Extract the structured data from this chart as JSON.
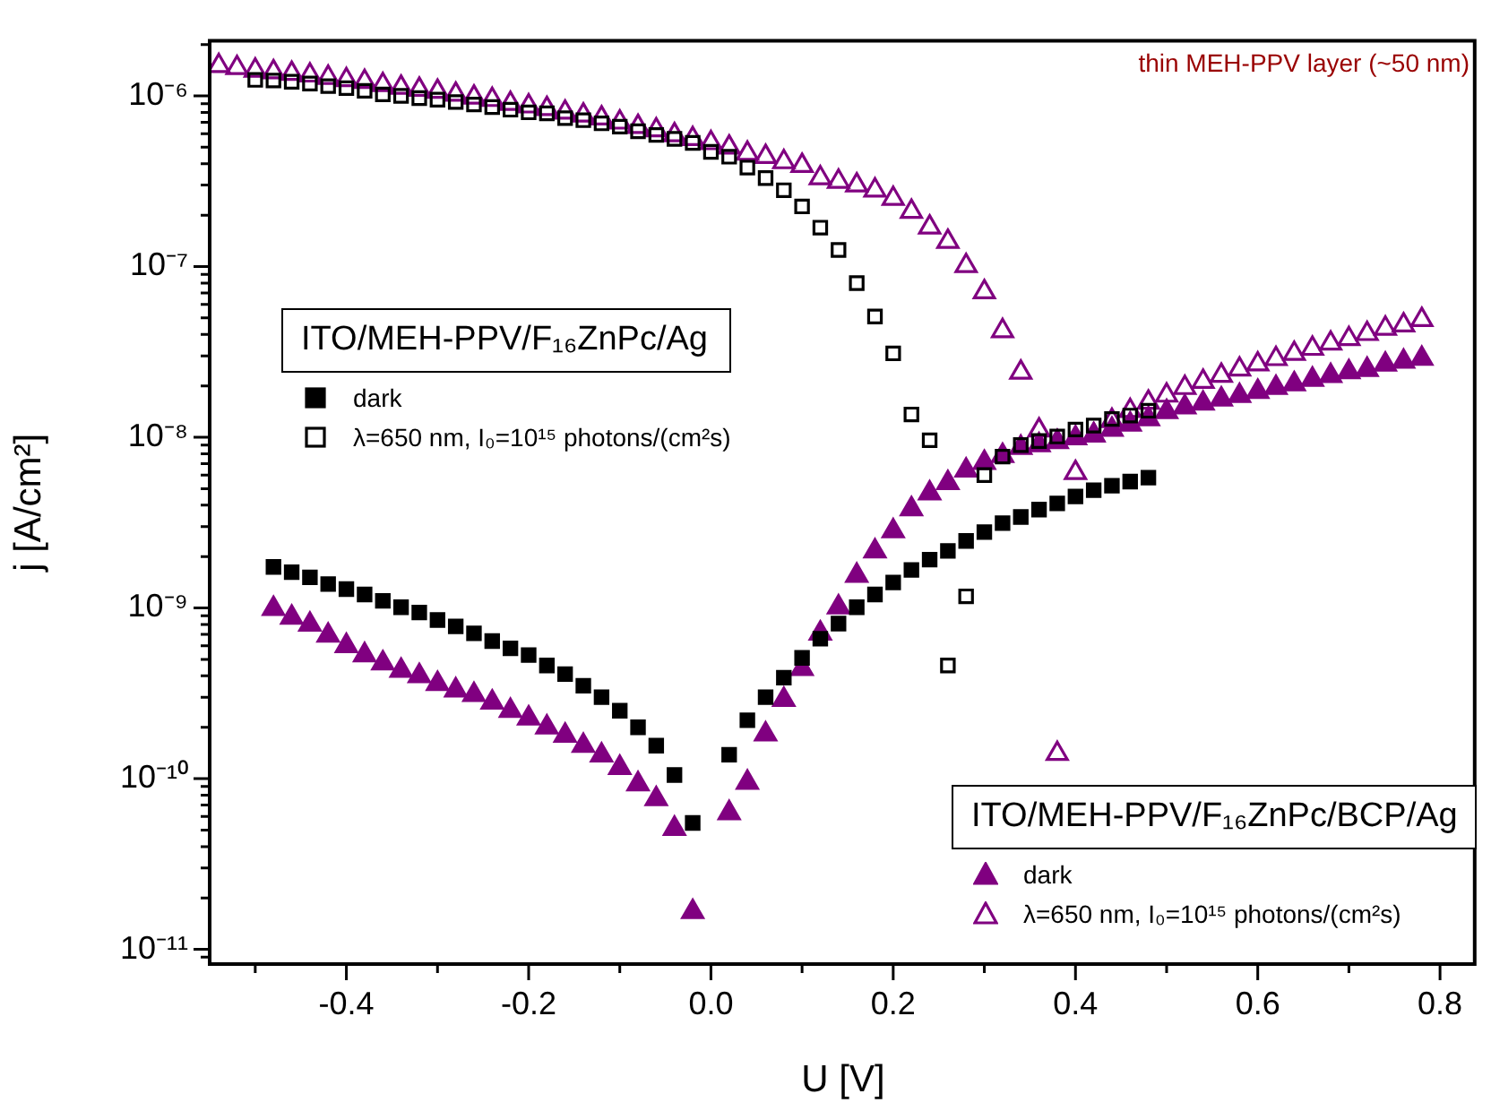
{
  "chart_data": {
    "type": "scatter",
    "xlabel": "U [V]",
    "ylabel": "j [A/cm²]",
    "log": "y",
    "grid": false,
    "legend": "left",
    "xlim": [
      -0.55,
      0.84
    ],
    "ylim": [
      8.2e-12,
      2.1e-06
    ],
    "xticks": [
      {
        "value": -0.5,
        "label": null
      },
      {
        "value": -0.4,
        "label": "-0.4"
      },
      {
        "value": -0.3,
        "label": null
      },
      {
        "value": -0.2,
        "label": "-0.2"
      },
      {
        "value": -0.1,
        "label": null
      },
      {
        "value": 0,
        "label": "0.0"
      },
      {
        "value": 0.1,
        "label": null
      },
      {
        "value": 0.2,
        "label": "0.2"
      },
      {
        "value": 0.3,
        "label": null
      },
      {
        "value": 0.4,
        "label": "0.4"
      },
      {
        "value": 0.5,
        "label": null
      },
      {
        "value": 0.6,
        "label": "0.6"
      },
      {
        "value": 0.7,
        "label": null
      },
      {
        "value": 0.8,
        "label": "0.8"
      }
    ],
    "yticks": [
      {
        "value": 9e-12,
        "label": null
      },
      {
        "value": 1e-11,
        "label": "10⁻¹¹"
      },
      {
        "value": 2e-11,
        "label": null
      },
      {
        "value": 3e-11,
        "label": null
      },
      {
        "value": 4e-11,
        "label": null
      },
      {
        "value": 5e-11,
        "label": null
      },
      {
        "value": 6e-11,
        "label": null
      },
      {
        "value": 7e-11,
        "label": null
      },
      {
        "value": 8e-11,
        "label": null
      },
      {
        "value": 9e-11,
        "label": null
      },
      {
        "value": 1e-10,
        "label": "10⁻¹⁰"
      },
      {
        "value": 2e-10,
        "label": null
      },
      {
        "value": 3e-10,
        "label": null
      },
      {
        "value": 4e-10,
        "label": null
      },
      {
        "value": 5e-10,
        "label": null
      },
      {
        "value": 6e-10,
        "label": null
      },
      {
        "value": 7e-10,
        "label": null
      },
      {
        "value": 8e-10,
        "label": null
      },
      {
        "value": 9e-10,
        "label": null
      },
      {
        "value": 1e-09,
        "label": "10⁻⁹"
      },
      {
        "value": 2e-09,
        "label": null
      },
      {
        "value": 3e-09,
        "label": null
      },
      {
        "value": 4e-09,
        "label": null
      },
      {
        "value": 5e-09,
        "label": null
      },
      {
        "value": 6e-09,
        "label": null
      },
      {
        "value": 7e-09,
        "label": null
      },
      {
        "value": 8e-09,
        "label": null
      },
      {
        "value": 9e-09,
        "label": null
      },
      {
        "value": 1e-08,
        "label": "10⁻⁸"
      },
      {
        "value": 2e-08,
        "label": null
      },
      {
        "value": 3e-08,
        "label": null
      },
      {
        "value": 4e-08,
        "label": null
      },
      {
        "value": 5e-08,
        "label": null
      },
      {
        "value": 6e-08,
        "label": null
      },
      {
        "value": 7e-08,
        "label": null
      },
      {
        "value": 8e-08,
        "label": null
      },
      {
        "value": 9e-08,
        "label": null
      },
      {
        "value": 1e-07,
        "label": "10⁻⁷"
      },
      {
        "value": 2e-07,
        "label": null
      },
      {
        "value": 3e-07,
        "label": null
      },
      {
        "value": 4e-07,
        "label": null
      },
      {
        "value": 5e-07,
        "label": null
      },
      {
        "value": 6e-07,
        "label": null
      },
      {
        "value": 7e-07,
        "label": null
      },
      {
        "value": 8e-07,
        "label": null
      },
      {
        "value": 9e-07,
        "label": null
      },
      {
        "value": 1e-06,
        "label": "10⁻⁶"
      },
      {
        "value": 2e-06,
        "label": null
      }
    ],
    "annotations": [
      "ITO/MEH-PPV/F₁₆ZnPc/Ag",
      "ITO/MEH-PPV/F₁₆ZnPc/BCP/Ag",
      "thin MEH-PPV layer (~50 nm)"
    ],
    "series": [
      {
        "name": "dark",
        "color": "#000000",
        "marker": "square",
        "x": [
          -0.48,
          -0.46,
          -0.44,
          -0.42,
          -0.4,
          -0.38,
          -0.36,
          -0.34,
          -0.32,
          -0.3,
          -0.28,
          -0.26,
          -0.24,
          -0.22,
          -0.2,
          -0.18,
          -0.16,
          -0.14,
          -0.12,
          -0.1,
          -0.08,
          -0.06,
          -0.04,
          -0.02,
          0.02,
          0.04,
          0.06,
          0.08,
          0.1,
          0.12,
          0.14,
          0.16,
          0.18,
          0.2,
          0.22,
          0.24,
          0.26,
          0.28,
          0.3,
          0.32,
          0.34,
          0.36,
          0.38,
          0.4,
          0.42,
          0.44,
          0.46,
          0.48
        ],
        "values": [
          1.74e-09,
          1.62e-09,
          1.51e-09,
          1.38e-09,
          1.29e-09,
          1.2e-09,
          1.1e-09,
          1.01e-09,
          9.4e-10,
          8.5e-10,
          7.8e-10,
          7.1e-10,
          6.4e-10,
          5.8e-10,
          5.3e-10,
          4.6e-10,
          4.1e-10,
          3.5e-10,
          3e-10,
          2.5e-10,
          2e-10,
          1.56e-10,
          1.05e-10,
          5.5e-11,
          1.38e-10,
          2.2e-10,
          3e-10,
          3.9e-10,
          5.1e-10,
          6.6e-10,
          8.1e-10,
          1.01e-09,
          1.2e-09,
          1.41e-09,
          1.67e-09,
          1.92e-09,
          2.16e-09,
          2.47e-09,
          2.78e-09,
          3.14e-09,
          3.41e-09,
          3.77e-09,
          4.1e-09,
          4.5e-09,
          4.9e-09,
          5.2e-09,
          5.5e-09,
          5.8e-09
        ]
      },
      {
        "name": "λ=650 nm, I₀=10¹⁵ photons/(cm²s)",
        "color": "#000000",
        "marker": "square",
        "x": [
          -0.5,
          -0.48,
          -0.46,
          -0.44,
          -0.42,
          -0.4,
          -0.38,
          -0.36,
          -0.34,
          -0.32,
          -0.3,
          -0.28,
          -0.26,
          -0.24,
          -0.22,
          -0.2,
          -0.18,
          -0.16,
          -0.14,
          -0.12,
          -0.1,
          -0.08,
          -0.06,
          -0.04,
          -0.02,
          0,
          0.02,
          0.04,
          0.06,
          0.08,
          0.1,
          0.12,
          0.14,
          0.16,
          0.18,
          0.2,
          0.22,
          0.24,
          0.26,
          0.28,
          0.3,
          0.32,
          0.34,
          0.36,
          0.38,
          0.4,
          0.42,
          0.44,
          0.46,
          0.48
        ],
        "values": [
          1.24e-06,
          1.23e-06,
          1.21e-06,
          1.18e-06,
          1.14e-06,
          1.11e-06,
          1.07e-06,
          1.02e-06,
          1e-06,
          9.7e-07,
          9.5e-07,
          9.2e-07,
          8.9e-07,
          8.6e-07,
          8.3e-07,
          8e-07,
          7.9e-07,
          7.4e-07,
          7.2e-07,
          6.9e-07,
          6.6e-07,
          6.2e-07,
          5.9e-07,
          5.6e-07,
          5.3e-07,
          4.7e-07,
          4.4e-07,
          3.8e-07,
          3.3e-07,
          2.8e-07,
          2.25e-07,
          1.69e-07,
          1.25e-07,
          8e-08,
          5.1e-08,
          3.1e-08,
          1.36e-08,
          9.6e-09,
          4.6e-10,
          1.17e-09,
          6e-09,
          7.7e-09,
          9e-09,
          9.5e-09,
          1.01e-08,
          1.11e-08,
          1.17e-08,
          1.28e-08,
          1.34e-08,
          1.43e-08
        ]
      },
      {
        "name": "dark",
        "color": "#800080",
        "marker": "triangle",
        "x": [
          -0.48,
          -0.46,
          -0.44,
          -0.42,
          -0.4,
          -0.38,
          -0.36,
          -0.34,
          -0.32,
          -0.3,
          -0.28,
          -0.26,
          -0.24,
          -0.22,
          -0.2,
          -0.18,
          -0.16,
          -0.14,
          -0.12,
          -0.1,
          -0.08,
          -0.06,
          -0.04,
          -0.02,
          0.02,
          0.04,
          0.06,
          0.08,
          0.1,
          0.12,
          0.14,
          0.16,
          0.18,
          0.2,
          0.22,
          0.24,
          0.26,
          0.28,
          0.3,
          0.32,
          0.34,
          0.36,
          0.38,
          0.4,
          0.42,
          0.44,
          0.46,
          0.48,
          0.5,
          0.52,
          0.54,
          0.56,
          0.58,
          0.6,
          0.62,
          0.64,
          0.66,
          0.68,
          0.7,
          0.72,
          0.74,
          0.76,
          0.78
        ],
        "values": [
          9.9e-10,
          8.8e-10,
          8e-10,
          6.9e-10,
          6e-10,
          5.3e-10,
          4.75e-10,
          4.3e-10,
          4e-10,
          3.6e-10,
          3.3e-10,
          3.1e-10,
          2.8e-10,
          2.5e-10,
          2.26e-10,
          2e-10,
          1.79e-10,
          1.56e-10,
          1.37e-10,
          1.16e-10,
          9.3e-11,
          7.6e-11,
          5.1e-11,
          1.66e-11,
          6.3e-11,
          9.5e-11,
          1.82e-10,
          2.9e-10,
          4.4e-10,
          7.1e-10,
          1.01e-09,
          1.55e-09,
          2.15e-09,
          2.82e-09,
          3.8e-09,
          4.7e-09,
          5.4e-09,
          6.4e-09,
          7.1e-09,
          7.8e-09,
          8.7e-09,
          9e-09,
          9.4e-09,
          9.9e-09,
          1.03e-08,
          1.11e-08,
          1.19e-08,
          1.28e-08,
          1.41e-08,
          1.5e-08,
          1.58e-08,
          1.67e-08,
          1.75e-08,
          1.85e-08,
          1.95e-08,
          2.05e-08,
          2.18e-08,
          2.29e-08,
          2.41e-08,
          2.49e-08,
          2.67e-08,
          2.78e-08,
          2.89e-08
        ]
      },
      {
        "name": "λ=650 nm, I₀=10¹⁵ photons/(cm²s)",
        "color": "#800080",
        "marker": "triangle",
        "x": [
          -0.54,
          -0.52,
          -0.5,
          -0.48,
          -0.46,
          -0.44,
          -0.42,
          -0.4,
          -0.38,
          -0.36,
          -0.34,
          -0.32,
          -0.3,
          -0.28,
          -0.26,
          -0.24,
          -0.22,
          -0.2,
          -0.18,
          -0.16,
          -0.14,
          -0.12,
          -0.1,
          -0.08,
          -0.06,
          -0.04,
          -0.02,
          0,
          0.02,
          0.04,
          0.06,
          0.08,
          0.1,
          0.12,
          0.14,
          0.16,
          0.18,
          0.2,
          0.22,
          0.24,
          0.26,
          0.28,
          0.3,
          0.32,
          0.34,
          0.36,
          0.38,
          0.4,
          0.42,
          0.44,
          0.46,
          0.48,
          0.5,
          0.52,
          0.54,
          0.56,
          0.58,
          0.6,
          0.62,
          0.64,
          0.66,
          0.68,
          0.7,
          0.72,
          0.74,
          0.76,
          0.78
        ],
        "values": [
          1.5e-06,
          1.46e-06,
          1.41e-06,
          1.38e-06,
          1.35e-06,
          1.32e-06,
          1.28e-06,
          1.24e-06,
          1.21e-06,
          1.16e-06,
          1.12e-06,
          1.09e-06,
          1.06e-06,
          1.02e-06,
          9.8e-07,
          9.5e-07,
          9e-07,
          8.7e-07,
          8.4e-07,
          8e-07,
          7.7e-07,
          7.4e-07,
          7e-07,
          6.6e-07,
          6.3e-07,
          5.9e-07,
          5.6e-07,
          5.3e-07,
          5e-07,
          4.6e-07,
          4.4e-07,
          4.1e-07,
          3.9e-07,
          3.3e-07,
          3.15e-07,
          3e-07,
          2.8e-07,
          2.5e-07,
          2.1e-07,
          1.7e-07,
          1.4e-07,
          1.01e-07,
          7.1e-08,
          4.2e-08,
          2.4e-08,
          1.1e-08,
          1.4e-10,
          6.2e-09,
          1.03e-08,
          1.25e-08,
          1.43e-08,
          1.6e-08,
          1.76e-08,
          1.95e-08,
          2.12e-08,
          2.3e-08,
          2.5e-08,
          2.68e-08,
          2.88e-08,
          3.09e-08,
          3.31e-08,
          3.55e-08,
          3.77e-08,
          4.04e-08,
          4.34e-08,
          4.54e-08,
          4.88e-08
        ]
      }
    ]
  }
}
